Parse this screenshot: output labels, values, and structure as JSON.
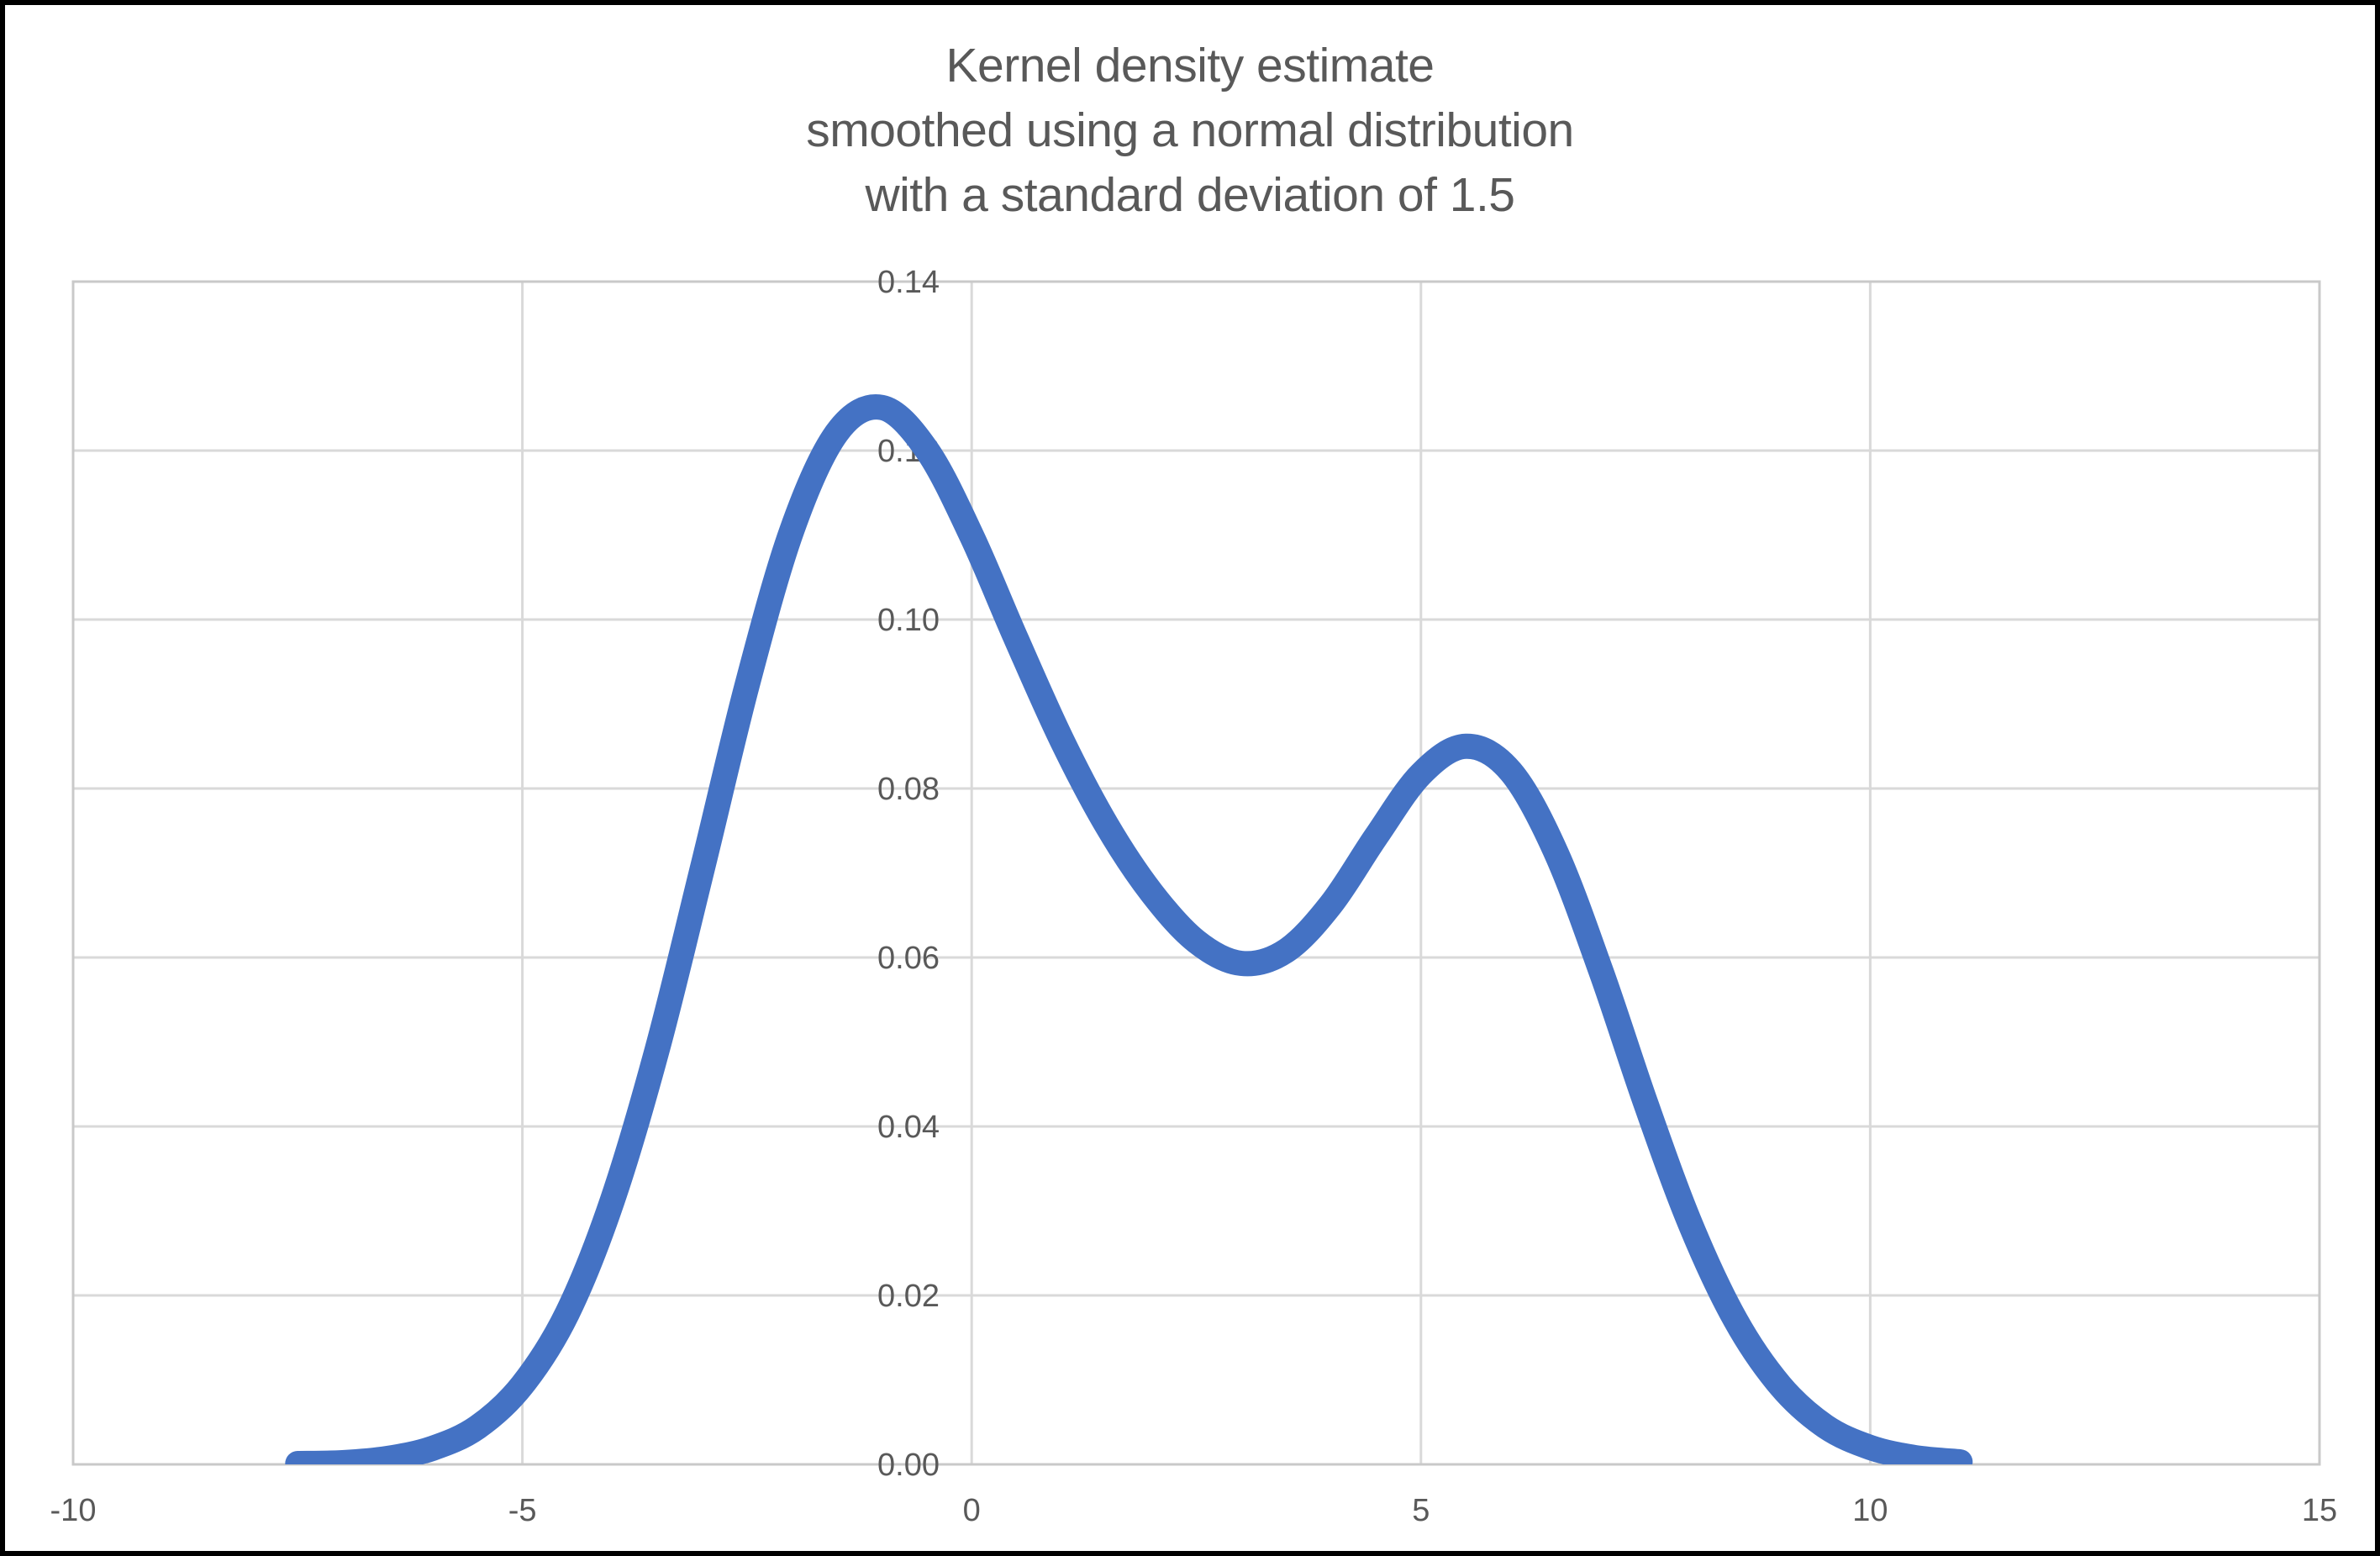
{
  "window": {
    "background": "#FFFFFF",
    "frame_border_color": "#000000"
  },
  "chart_data": {
    "type": "line",
    "title_lines": [
      "Kernel density estimate",
      "smoothed using a normal distribution",
      "with a standard deviation of 1.5"
    ],
    "xlabel": "",
    "ylabel": "",
    "xlim": [
      -10,
      15
    ],
    "ylim": [
      0,
      0.14
    ],
    "x_tick_values": [
      -10,
      -5,
      0,
      5,
      10,
      15
    ],
    "x_tick_labels": [
      "-10",
      "-5",
      "0",
      "5",
      "10",
      "15"
    ],
    "y_tick_values": [
      0.0,
      0.02,
      0.04,
      0.06,
      0.08,
      0.1,
      0.12,
      0.14
    ],
    "y_tick_labels": [
      "0.00",
      "0.02",
      "0.04",
      "0.06",
      "0.08",
      "0.10",
      "0.12",
      "0.14"
    ],
    "grid": true,
    "legend": "none",
    "colors": {
      "series_line": "#4472C4",
      "tick_text": "#595959",
      "title_text": "#595959",
      "gridline": "#D9D9D9",
      "plot_border": "#C9C9C9"
    },
    "series": [
      {
        "name": "kernel-density-estimate",
        "color": "#4472C4",
        "stroke_width": 30,
        "points": [
          [
            -7.5,
            0.0001
          ],
          [
            -7.0,
            0.0002
          ],
          [
            -6.5,
            0.0007
          ],
          [
            -6.0,
            0.0019
          ],
          [
            -5.5,
            0.0044
          ],
          [
            -5.0,
            0.0094
          ],
          [
            -4.5,
            0.0179
          ],
          [
            -4.0,
            0.0312
          ],
          [
            -3.5,
            0.0491
          ],
          [
            -3.0,
            0.0704
          ],
          [
            -2.5,
            0.0922
          ],
          [
            -2.0,
            0.1106
          ],
          [
            -1.5,
            0.1221
          ],
          [
            -1.0,
            0.1251
          ],
          [
            -0.5,
            0.1201
          ],
          [
            0.0,
            0.1099
          ],
          [
            0.5,
            0.0976
          ],
          [
            1.0,
            0.0858
          ],
          [
            1.5,
            0.0757
          ],
          [
            2.0,
            0.0677
          ],
          [
            2.5,
            0.0619
          ],
          [
            3.0,
            0.0593
          ],
          [
            3.5,
            0.0608
          ],
          [
            4.0,
            0.0663
          ],
          [
            4.5,
            0.0743
          ],
          [
            5.0,
            0.0817
          ],
          [
            5.5,
            0.085
          ],
          [
            6.0,
            0.082
          ],
          [
            6.5,
            0.0725
          ],
          [
            7.0,
            0.0585
          ],
          [
            7.5,
            0.0428
          ],
          [
            8.0,
            0.0284
          ],
          [
            8.5,
            0.0171
          ],
          [
            9.0,
            0.0093
          ],
          [
            9.5,
            0.0045
          ],
          [
            10.0,
            0.002
          ],
          [
            10.5,
            0.0008
          ],
          [
            11.0,
            0.0003
          ]
        ]
      }
    ]
  }
}
